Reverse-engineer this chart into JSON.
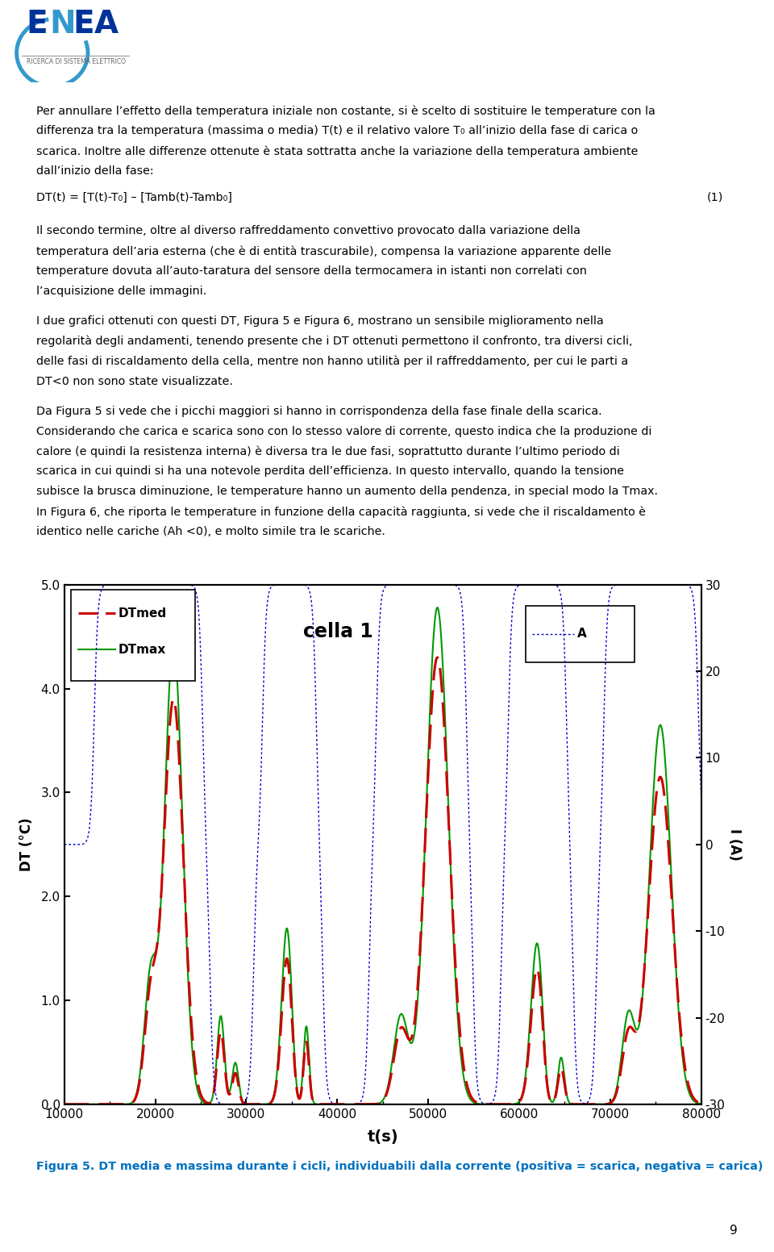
{
  "xlabel": "t(s)",
  "ylabel_left": "DT (°C)",
  "ylabel_right": "I (A)",
  "ylim_left": [
    0.0,
    5.0
  ],
  "ylim_right": [
    -30,
    30
  ],
  "xlim": [
    10000,
    80000
  ],
  "xticks": [
    10000,
    20000,
    30000,
    40000,
    50000,
    60000,
    70000,
    80000
  ],
  "yticks_left": [
    0.0,
    1.0,
    2.0,
    3.0,
    4.0,
    5.0
  ],
  "yticks_right": [
    -30,
    -20,
    -10,
    0,
    10,
    20,
    30
  ],
  "legend_DTmed_label": "DTmed",
  "legend_DTmax_label": "DTmax",
  "legend_A_label": "A",
  "legend_cell_label": "cella 1",
  "color_DTmed": "#CC0000",
  "color_DTmax": "#009900",
  "color_A": "#0000CC",
  "background_color": "#FFFFFF",
  "page_number": "9",
  "caption": "Figura 5. DT media e massima durante i cicli, individuabili dalla corrente (positiva = scarica, negativa = carica)",
  "caption_color": "#0070C0",
  "para1": "Per annullare l’effetto della temperatura iniziale non costante, si è scelto di sostituire le temperature con la differenza tra la\ntemperatura (massima o media) T(t) e il relativo valore T₀ all’inizio della fase di carica o scarica. Inoltre alle differenze\nottenute è stata sottratta anche la variazione della temperatura ambiente dall’inizio della fase:",
  "para2": "DT(t) = [T(t)-T₀] – [Tamb(t)-Tamb₀]",
  "para2_eq": "(1)",
  "para3": "Il secondo termine, oltre al diverso raffreddamento convettivo provocato dalla variazione della temperatura dell’aria esterna\n(che è di entità trascurabile), compensa la variazione apparente delle temperature dovuta all’auto-taratura del sensore della\ntermocamera in istanti non correlati con l’acquisizione delle immagini.",
  "para4": "I due grafici ottenuti con questi DT, Figura 5 e Figura 6, mostrano un sensibile miglioramento nella regolarità degli andamenti,\ntenendo presente che i DT ottenuti permettono il confronto, tra diversi cicli, delle fasi di riscaldamento della cella, mentre non\nhanno utilità per il raffreddamento, per cui le parti a DT<0 non sono state visualizzate.",
  "para5": "Da Figura 5 si vede che i picchi maggiori si hanno in corrispondenza della fase finale della scarica. Considerando che carica e\nscarica sono con lo stesso valore di corrente, questo indica che la produzione di calore (e quindi la resistenza interna) è\ndiversa tra le due fasi, soprattutto durante l’ultimo periodo di scarica in cui quindi si ha una notevole perdita dell’efficienza.\nIn questo intervallo, quando la tensione subisce la brusca diminuzione, le temperature hanno un aumento della pendenza, in\nspecial modo la Tmax. In Figura 6, che riporta le temperature in funzione della capacità raggiunta, si vede che il\nriscaldamento è identico nelle cariche (Ah <0), e molto simile tra le scariche."
}
